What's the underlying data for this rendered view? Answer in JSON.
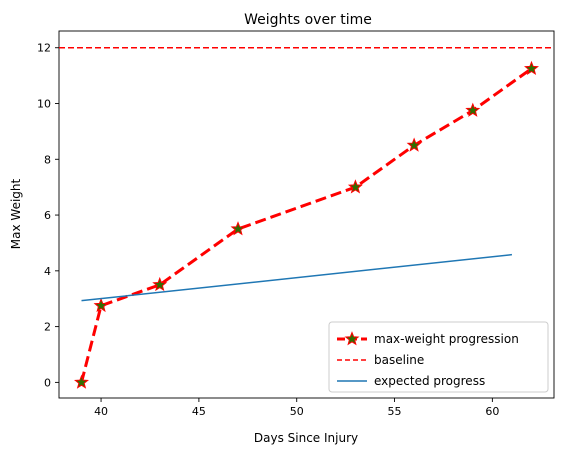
{
  "chart_data": {
    "type": "line",
    "title": "Weights over time",
    "xlabel": "Days Since Injury",
    "ylabel": "Max Weight",
    "xlim": [
      37.85,
      63.15
    ],
    "ylim": [
      -0.56,
      12.6
    ],
    "x_ticks": [
      40,
      45,
      50,
      55,
      60
    ],
    "y_ticks": [
      0,
      2,
      4,
      6,
      8,
      10,
      12
    ],
    "grid": false,
    "legend_position": "lower-right",
    "series": [
      {
        "name": "max-weight progression",
        "x": [
          39,
          40,
          43,
          47,
          53,
          56,
          59,
          62
        ],
        "y": [
          0,
          2.75,
          3.5,
          5.5,
          7.0,
          8.5,
          9.75,
          11.25
        ],
        "color": "#ff0000",
        "style": "dashed",
        "marker": "star",
        "marker_color": "#2e6f00"
      },
      {
        "name": "baseline",
        "y": 12,
        "color": "#ff0000",
        "style": "dashed",
        "kind": "hline"
      },
      {
        "name": "expected progress",
        "x": [
          39,
          61
        ],
        "y": [
          2.93,
          4.58
        ],
        "color": "#1f77b4",
        "style": "solid"
      }
    ]
  }
}
